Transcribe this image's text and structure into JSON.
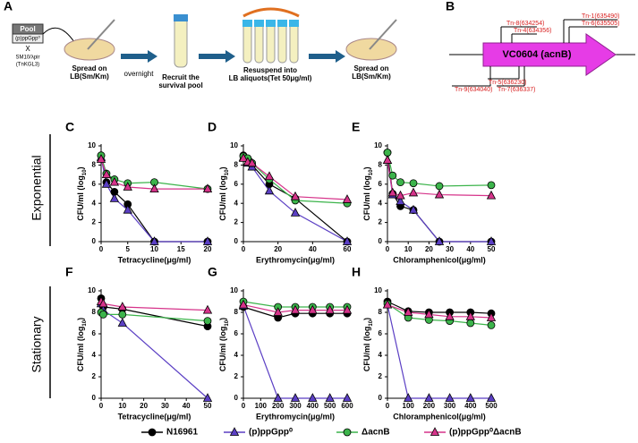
{
  "panel_a": {
    "label": "A",
    "pool": "Pool",
    "strain": "(p)ppGpp⁰",
    "cross": "X",
    "donor": "SM10/λpir",
    "donor_plasmid": "(TnKGL3)",
    "step1": [
      "Spread on",
      "LB(Sm/Km)"
    ],
    "overnight": "overnight",
    "step2": [
      "Recruit the",
      "survival pool"
    ],
    "step3": [
      "Resuspend into",
      "LB aliquots(Tet 50μg/ml)"
    ],
    "step4": [
      "Spread on",
      "LB(Sm/Km)"
    ]
  },
  "panel_b": {
    "label": "B",
    "gene": "VC0604 (acnB)",
    "top_insertions": [
      "Tn-8(634254)",
      "Tn-4(634356)",
      "Tn-1(635490)",
      "Tn-6(635505)"
    ],
    "bottom_insertions": [
      "Tn-9(634040)",
      "Tn-5(636230)",
      "Tn-7(636337)"
    ]
  },
  "rows": [
    "Exponential",
    "Stationary"
  ],
  "legend": [
    {
      "name": "N16961",
      "color": "#000000",
      "marker": "circle"
    },
    {
      "name": "(p)ppGpp⁰",
      "color": "#5b3fc4",
      "marker": "triangle"
    },
    {
      "name": "ΔacnB",
      "color": "#3cb44b",
      "marker": "circle"
    },
    {
      "name": "(p)ppGpp⁰ΔacnB",
      "color": "#d6338a",
      "marker": "triangle"
    }
  ],
  "chart_data": [
    {
      "type": "line",
      "panel": "C",
      "xlabel": "Tetracycline(μg/ml)",
      "ylabel": [
        "CFU/ml (log",
        "10",
        ")"
      ],
      "x": [
        0,
        1,
        2.5,
        5,
        10,
        20
      ],
      "xlim": [
        0,
        20
      ],
      "xticks": [
        0,
        5,
        10,
        15,
        20
      ],
      "ylim": [
        0,
        10
      ],
      "yticks": [
        0,
        2,
        4,
        6,
        8,
        10
      ],
      "series": [
        {
          "color": "#000000",
          "marker": "circle",
          "values": [
            9,
            6.2,
            5.2,
            3.9,
            0,
            0
          ]
        },
        {
          "color": "#5b3fc4",
          "marker": "triangle",
          "values": [
            8.8,
            6.0,
            4.5,
            3.3,
            0,
            0
          ]
        },
        {
          "color": "#3cb44b",
          "marker": "circle",
          "values": [
            9,
            7.1,
            6.5,
            6.1,
            6.2,
            5.5
          ]
        },
        {
          "color": "#d6338a",
          "marker": "triangle",
          "values": [
            8.6,
            7.0,
            6.2,
            5.7,
            5.5,
            5.5
          ]
        }
      ]
    },
    {
      "type": "line",
      "panel": "D",
      "xlabel": "Erythromycin(μg/ml)",
      "ylabel": [
        "CFU/ml (log",
        "10",
        ")"
      ],
      "x": [
        0,
        2.5,
        5,
        15,
        30,
        60
      ],
      "xlim": [
        0,
        60
      ],
      "xticks": [
        0,
        20,
        40,
        60
      ],
      "ylim": [
        0,
        10
      ],
      "yticks": [
        0,
        2,
        4,
        6,
        8,
        10
      ],
      "series": [
        {
          "color": "#000000",
          "marker": "circle",
          "values": [
            9,
            8.6,
            8.0,
            6.0,
            4.5,
            0
          ]
        },
        {
          "color": "#5b3fc4",
          "marker": "triangle",
          "values": [
            8.8,
            8.2,
            7.8,
            5.3,
            3.0,
            0
          ]
        },
        {
          "color": "#3cb44b",
          "marker": "circle",
          "values": [
            8.9,
            8.7,
            8.2,
            6.5,
            4.3,
            4.0
          ]
        },
        {
          "color": "#d6338a",
          "marker": "triangle",
          "values": [
            8.7,
            8.3,
            8.2,
            6.8,
            4.7,
            4.4
          ]
        }
      ]
    },
    {
      "type": "line",
      "panel": "E",
      "xlabel": "Chloramphenicol(μg/ml)",
      "ylabel": [
        "CFU/ml (log",
        "10",
        ")"
      ],
      "x": [
        0,
        2.5,
        6.25,
        12.5,
        25,
        50
      ],
      "xlim": [
        0,
        50
      ],
      "xticks": [
        0,
        10,
        20,
        30,
        40,
        50
      ],
      "ylim": [
        0,
        10
      ],
      "yticks": [
        0,
        2,
        4,
        6,
        8,
        10
      ],
      "series": [
        {
          "color": "#000000",
          "marker": "circle",
          "values": [
            9.3,
            5,
            3.7,
            3.3,
            0,
            0
          ]
        },
        {
          "color": "#5b3fc4",
          "marker": "triangle",
          "values": [
            8.5,
            4.9,
            4.2,
            3.3,
            0,
            0
          ]
        },
        {
          "color": "#3cb44b",
          "marker": "circle",
          "values": [
            9.3,
            6.9,
            6.2,
            6.1,
            5.8,
            5.9
          ]
        },
        {
          "color": "#d6338a",
          "marker": "triangle",
          "values": [
            8.5,
            5.1,
            4.8,
            5.1,
            4.9,
            4.8
          ]
        }
      ]
    },
    {
      "type": "line",
      "panel": "F",
      "xlabel": "Tetracycline(μg/ml)",
      "ylabel": [
        "CFU/ml (log",
        "10",
        ")"
      ],
      "x": [
        0,
        1,
        10,
        50
      ],
      "xlim": [
        0,
        50
      ],
      "xticks": [
        0,
        10,
        20,
        30,
        40,
        50
      ],
      "ylim": [
        0,
        10
      ],
      "yticks": [
        0,
        2,
        4,
        6,
        8,
        10
      ],
      "series": [
        {
          "color": "#000000",
          "marker": "circle",
          "values": [
            9.3,
            8.5,
            8.3,
            6.7
          ]
        },
        {
          "color": "#5b3fc4",
          "marker": "triangle",
          "values": [
            8.8,
            8.2,
            7.0,
            0
          ]
        },
        {
          "color": "#3cb44b",
          "marker": "circle",
          "values": [
            8.0,
            7.8,
            7.8,
            7.2
          ]
        },
        {
          "color": "#d6338a",
          "marker": "triangle",
          "values": [
            9.0,
            8.8,
            8.5,
            8.2
          ]
        }
      ]
    },
    {
      "type": "line",
      "panel": "G",
      "xlabel": "Erythromycin(μg/ml)",
      "ylabel": [
        "CFU/ml (log",
        "10",
        ")"
      ],
      "x": [
        0,
        200,
        300,
        400,
        500,
        600
      ],
      "xlim": [
        0,
        600
      ],
      "xticks": [
        0,
        100,
        200,
        300,
        400,
        500,
        600
      ],
      "ylim": [
        0,
        10
      ],
      "yticks": [
        0,
        2,
        4,
        6,
        8,
        10
      ],
      "series": [
        {
          "color": "#000000",
          "marker": "circle",
          "values": [
            8.5,
            7.5,
            7.9,
            7.9,
            7.9,
            7.9
          ]
        },
        {
          "color": "#5b3fc4",
          "marker": "triangle",
          "values": [
            8.6,
            0,
            0,
            0,
            0,
            0
          ]
        },
        {
          "color": "#3cb44b",
          "marker": "circle",
          "values": [
            9.0,
            8.5,
            8.5,
            8.5,
            8.5,
            8.5
          ]
        },
        {
          "color": "#d6338a",
          "marker": "triangle",
          "values": [
            8.7,
            8.0,
            8.2,
            8.2,
            8.2,
            8.2
          ]
        }
      ]
    },
    {
      "type": "line",
      "panel": "H",
      "xlabel": "Chloramphenicol(μg/ml)",
      "ylabel": [
        "CFU/ml (log",
        "10",
        ")"
      ],
      "x": [
        0,
        100,
        200,
        300,
        400,
        500
      ],
      "xlim": [
        0,
        500
      ],
      "xticks": [
        0,
        100,
        200,
        300,
        400,
        500
      ],
      "ylim": [
        0,
        10
      ],
      "yticks": [
        0,
        2,
        4,
        6,
        8,
        10
      ],
      "series": [
        {
          "color": "#000000",
          "marker": "circle",
          "values": [
            9,
            8.1,
            8.0,
            8.0,
            8.0,
            7.9
          ]
        },
        {
          "color": "#5b3fc4",
          "marker": "triangle",
          "values": [
            8.7,
            0,
            0,
            0,
            0,
            0
          ]
        },
        {
          "color": "#3cb44b",
          "marker": "circle",
          "values": [
            8.8,
            7.5,
            7.3,
            7.2,
            7.0,
            6.8
          ]
        },
        {
          "color": "#d6338a",
          "marker": "triangle",
          "values": [
            8.7,
            8.0,
            7.8,
            7.6,
            7.6,
            7.5
          ]
        }
      ]
    }
  ]
}
